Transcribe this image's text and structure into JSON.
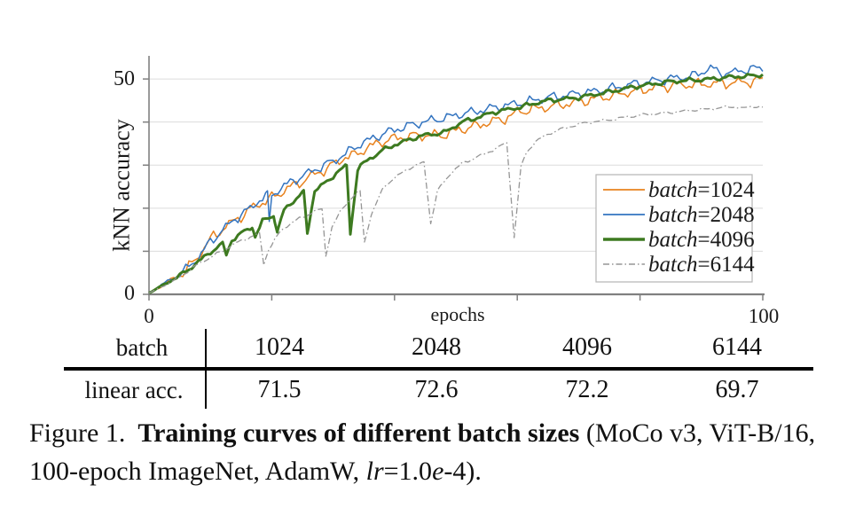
{
  "chart_data": {
    "type": "line",
    "title": "",
    "xlabel": "epochs",
    "ylabel": "kNN accuracy",
    "xlim": [
      0,
      100
    ],
    "ylim": [
      0,
      55
    ],
    "xticks": [
      0,
      20,
      40,
      60,
      80,
      100
    ],
    "yticks": [
      0,
      10,
      20,
      30,
      40,
      50
    ],
    "xtick_labels_shown": [
      "0",
      "100"
    ],
    "ytick_labels_shown": [
      "0",
      "50"
    ],
    "grid": "horizontal",
    "legend_position": "lower-right",
    "series": [
      {
        "name": "batch=1024",
        "legend_italic": "batch",
        "legend_roman": "=1024",
        "color": "#e8821e",
        "style": "solid",
        "width": 1.5,
        "noise": 0.85,
        "phase": 1.3,
        "points": [
          [
            0,
            0.3
          ],
          [
            2,
            2.0
          ],
          [
            4,
            3.6
          ],
          [
            6,
            5.5
          ],
          [
            8,
            8.8
          ],
          [
            10,
            12.8
          ],
          [
            12,
            15.2
          ],
          [
            14,
            17.2
          ],
          [
            15,
            18.1
          ],
          [
            17,
            20.3
          ],
          [
            18,
            21.0
          ],
          [
            20,
            22.4
          ],
          [
            21,
            23.2
          ],
          [
            23,
            25.0
          ],
          [
            24,
            25.4
          ],
          [
            26,
            27.2
          ],
          [
            28,
            28.5
          ],
          [
            29,
            29.2
          ],
          [
            31,
            31.0
          ],
          [
            32,
            31.9
          ],
          [
            33.5,
            32.3
          ],
          [
            35,
            33.6
          ],
          [
            36.5,
            34.6
          ],
          [
            38,
            35.5
          ],
          [
            40,
            36.2
          ],
          [
            43,
            36.8
          ],
          [
            45,
            36.9
          ],
          [
            48,
            37.0
          ],
          [
            50,
            38.0
          ],
          [
            53,
            39.0
          ],
          [
            55,
            39.8
          ],
          [
            58,
            40.8
          ],
          [
            60,
            42.3
          ],
          [
            62,
            42.9
          ],
          [
            65,
            43.5
          ],
          [
            68,
            44.2
          ],
          [
            70,
            44.7
          ],
          [
            73,
            45.5
          ],
          [
            75,
            46.0
          ],
          [
            78,
            46.9
          ],
          [
            80,
            47.4
          ],
          [
            83,
            48.1
          ],
          [
            85,
            48.4
          ],
          [
            88,
            48.7
          ],
          [
            90,
            48.8
          ],
          [
            93,
            49.0
          ],
          [
            95,
            49.1
          ],
          [
            98,
            49.4
          ],
          [
            100,
            49.8
          ]
        ]
      },
      {
        "name": "batch=2048",
        "legend_italic": "batch",
        "legend_roman": "=2048",
        "color": "#3374c0",
        "style": "solid",
        "width": 1.5,
        "noise": 0.75,
        "phase": 2.6,
        "points": [
          [
            0,
            0.3
          ],
          [
            2,
            2.1
          ],
          [
            4,
            3.8
          ],
          [
            6,
            5.7
          ],
          [
            8,
            8.6
          ],
          [
            10,
            12.2
          ],
          [
            12,
            14.9
          ],
          [
            14,
            17.5
          ],
          [
            16,
            19.4
          ],
          [
            18,
            21.9
          ],
          [
            19.3,
            23.0
          ],
          [
            19.6,
            16.2
          ],
          [
            20,
            23.1
          ],
          [
            22,
            25.2
          ],
          [
            24,
            26.7
          ],
          [
            26,
            28.2
          ],
          [
            28,
            29.6
          ],
          [
            30,
            30.9
          ],
          [
            32,
            32.6
          ],
          [
            34,
            34.6
          ],
          [
            36,
            35.9
          ],
          [
            38,
            37.2
          ],
          [
            40,
            38.2
          ],
          [
            43,
            39.4
          ],
          [
            45,
            40.1
          ],
          [
            48,
            40.9
          ],
          [
            51,
            41.9
          ],
          [
            53,
            42.4
          ],
          [
            56,
            43.3
          ],
          [
            58,
            43.8
          ],
          [
            60,
            44.3
          ],
          [
            63,
            45.1
          ],
          [
            65,
            45.7
          ],
          [
            68,
            46.2
          ],
          [
            70,
            46.7
          ],
          [
            73,
            47.2
          ],
          [
            75,
            47.7
          ],
          [
            78,
            48.6
          ],
          [
            80,
            49.1
          ],
          [
            83,
            49.7
          ],
          [
            85,
            50.1
          ],
          [
            87,
            50.4
          ],
          [
            89,
            50.8
          ],
          [
            91.5,
            52.7
          ],
          [
            93,
            51.3
          ],
          [
            95,
            51.5
          ],
          [
            97,
            52.1
          ],
          [
            100,
            52.6
          ]
        ]
      },
      {
        "name": "batch=4096",
        "legend_italic": "batch",
        "legend_roman": "=4096",
        "color": "#3d7a20",
        "style": "solid",
        "width": 3.0,
        "noise": 0.35,
        "phase": 4.1,
        "points": [
          [
            0,
            0.3
          ],
          [
            2,
            1.9
          ],
          [
            4,
            3.5
          ],
          [
            6,
            5.3
          ],
          [
            8,
            7.5
          ],
          [
            10,
            9.8
          ],
          [
            12,
            11.7
          ],
          [
            12.6,
            9.3
          ],
          [
            13.5,
            12.6
          ],
          [
            15,
            14.1
          ],
          [
            16.8,
            15.8
          ],
          [
            17.3,
            13.4
          ],
          [
            18.5,
            17.0
          ],
          [
            20.3,
            18.4
          ],
          [
            20.9,
            14.4
          ],
          [
            22,
            19.6
          ],
          [
            24,
            22.3
          ],
          [
            25.2,
            23.6
          ],
          [
            25.8,
            14.1
          ],
          [
            27,
            24.2
          ],
          [
            29,
            26.1
          ],
          [
            31,
            28.8
          ],
          [
            32.2,
            29.8
          ],
          [
            32.8,
            14.3
          ],
          [
            34,
            29.0
          ],
          [
            35,
            30.5
          ],
          [
            36,
            31.5
          ],
          [
            38,
            33.4
          ],
          [
            40,
            34.7
          ],
          [
            43,
            36.2
          ],
          [
            45,
            37.0
          ],
          [
            48,
            37.5
          ],
          [
            51,
            40.0
          ],
          [
            53,
            40.8
          ],
          [
            56,
            42.2
          ],
          [
            58,
            42.8
          ],
          [
            60,
            43.3
          ],
          [
            63,
            44.4
          ],
          [
            65,
            45.0
          ],
          [
            68,
            45.4
          ],
          [
            70,
            45.7
          ],
          [
            73,
            46.5
          ],
          [
            75,
            47.0
          ],
          [
            78,
            47.9
          ],
          [
            80,
            48.4
          ],
          [
            83,
            49.0
          ],
          [
            85,
            49.4
          ],
          [
            88,
            49.7
          ],
          [
            90,
            49.8
          ],
          [
            93,
            50.2
          ],
          [
            95,
            50.5
          ],
          [
            98,
            50.7
          ],
          [
            100,
            51.0
          ]
        ]
      },
      {
        "name": "batch=6144",
        "legend_italic": "batch",
        "legend_roman": "=6144",
        "color": "#959595",
        "style": "dashdot",
        "width": 1.3,
        "noise": 0.22,
        "phase": 5.7,
        "points": [
          [
            0,
            0.3
          ],
          [
            2,
            1.7
          ],
          [
            4,
            3.2
          ],
          [
            6,
            5.0
          ],
          [
            8,
            7.0
          ],
          [
            10,
            8.6
          ],
          [
            12,
            10.1
          ],
          [
            14,
            11.8
          ],
          [
            16,
            13.0
          ],
          [
            18,
            14.1
          ],
          [
            18.7,
            7.0
          ],
          [
            19.5,
            10.5
          ],
          [
            21.5,
            14.8
          ],
          [
            23.5,
            16.9
          ],
          [
            25.5,
            18.2
          ],
          [
            27,
            19.3
          ],
          [
            28.2,
            19.8
          ],
          [
            28.8,
            9.0
          ],
          [
            29.8,
            15.5
          ],
          [
            31.3,
            19.5
          ],
          [
            33,
            22.5
          ],
          [
            34.4,
            24.0
          ],
          [
            35.1,
            12.1
          ],
          [
            36.2,
            18.5
          ],
          [
            38.3,
            25.1
          ],
          [
            40,
            27.0
          ],
          [
            42.2,
            29.2
          ],
          [
            44.8,
            30.6
          ],
          [
            45.9,
            16.5
          ],
          [
            47,
            24.0
          ],
          [
            49,
            27.9
          ],
          [
            51,
            30.4
          ],
          [
            53,
            31.6
          ],
          [
            55,
            32.8
          ],
          [
            57,
            34.2
          ],
          [
            58.3,
            35.2
          ],
          [
            59.5,
            13.2
          ],
          [
            60.6,
            29.5
          ],
          [
            61.5,
            33.0
          ],
          [
            63,
            35.5
          ],
          [
            65,
            37.2
          ],
          [
            67,
            38.3
          ],
          [
            70,
            39.5
          ],
          [
            72,
            40.0
          ],
          [
            75,
            40.5
          ],
          [
            78,
            41.2
          ],
          [
            80,
            41.6
          ],
          [
            83,
            42.0
          ],
          [
            85,
            42.2
          ],
          [
            88,
            42.7
          ],
          [
            90,
            42.9
          ],
          [
            93,
            43.3
          ],
          [
            95,
            43.6
          ],
          [
            97,
            43.2
          ],
          [
            98.5,
            43.7
          ],
          [
            100,
            43.4
          ]
        ]
      }
    ]
  },
  "table": {
    "header_label": "batch",
    "batches": [
      "1024",
      "2048",
      "4096",
      "6144"
    ],
    "row_label": "linear acc.",
    "values": [
      "71.5",
      "72.6",
      "72.2",
      "69.7"
    ]
  },
  "caption": {
    "prefix": "Figure 1.",
    "bold": "Training curves of different batch sizes",
    "after_bold": "(MoCo v3,",
    "line2_pre": "ViT-B/16, 100-epoch ImageNet, AdamW, ",
    "lr_italic": "lr",
    "eq": "=1.0",
    "e_italic": "e",
    "end": "-4)."
  },
  "colors": {
    "axis": "#808080",
    "grid": "#dcdcdc",
    "legend_border": "#b5b5b5",
    "text": "#1a1a1a"
  }
}
